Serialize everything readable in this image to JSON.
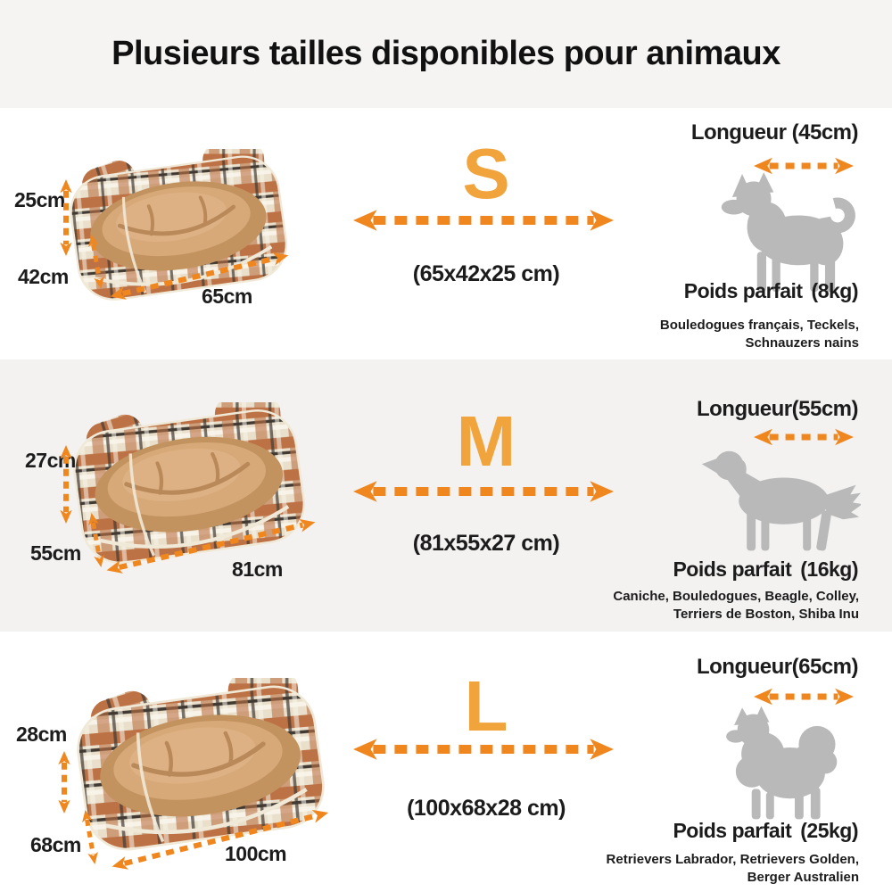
{
  "title": "Plusieurs tailles disponibles pour animaux",
  "colors": {
    "size_letter_orange": "#f2a43c",
    "arrow_orange": "#f0861e",
    "dog_silhouette_gray": "#b9b9b9",
    "title_band_bg": "#f5f4f2",
    "alt_row_bg": "#f3f2f1",
    "text_black": "#1c1c1c"
  },
  "rows": [
    {
      "size_letter": "S",
      "box_dimensions": "(65x42x25 cm)",
      "bed_labels": {
        "height": "25cm",
        "depth": "42cm",
        "width": "65cm"
      },
      "dog_info": {
        "length_label": "Longueur (45cm)",
        "weight_label": "Poids parfait",
        "weight_value": "(8kg)",
        "breeds_line1": "Bouledogues français, Teckels,",
        "breeds_line2": "Schnauzers nains",
        "silhouette": "husky-curled-tail"
      }
    },
    {
      "size_letter": "M",
      "box_dimensions": "(81x55x27 cm)",
      "bed_labels": {
        "height": "27cm",
        "depth": "55cm",
        "width": "81cm"
      },
      "dog_info": {
        "length_label": "Longueur(55cm)",
        "weight_label": "Poids parfait",
        "weight_value": "(16kg)",
        "breeds_line1": "Caniche, Bouledogues, Beagle, Colley,",
        "breeds_line2": "Terriers de Boston, Shiba Inu",
        "silhouette": "retriever"
      }
    },
    {
      "size_letter": "L",
      "box_dimensions": "(100x68x28 cm)",
      "bed_labels": {
        "height": "28cm",
        "depth": "68cm",
        "width": "100cm"
      },
      "dog_info": {
        "length_label": "Longueur(65cm)",
        "weight_label": "Poids parfait",
        "weight_value": "(25kg)",
        "breeds_line1": "Retrievers Labrador, Retrievers Golden,",
        "breeds_line2": "Berger Australien",
        "silhouette": "fluffy-spitz"
      }
    }
  ]
}
